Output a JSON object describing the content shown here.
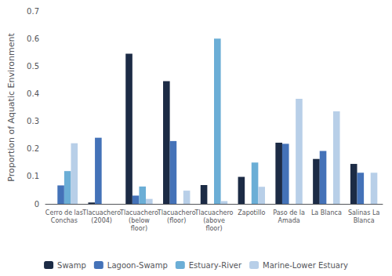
{
  "chart_data": {
    "type": "bar",
    "ylabel": "Proportion of Aquatic Environment",
    "categories": [
      "Cerro de las\nConchas",
      "Tlacuachero\n(2004)",
      "Tlacuachero\n(below\nfloor)",
      "Tlacuachero\n(floor)",
      "Tlacuachero\n(above\nfloor)",
      "Zapotillo",
      "Paso de la\nAmada",
      "La Blanca",
      "Salinas La\nBlanca"
    ],
    "series": [
      {
        "name": "Swamp",
        "color": "#1c2b45",
        "values": [
          0.0,
          0.005,
          0.545,
          0.445,
          0.068,
          0.098,
          0.222,
          0.163,
          0.145
        ]
      },
      {
        "name": "Lagoon-Swamp",
        "color": "#4472b8",
        "values": [
          0.067,
          0.24,
          0.03,
          0.228,
          0.0,
          0.0,
          0.218,
          0.192,
          0.113
        ]
      },
      {
        "name": "Estuary-River",
        "color": "#6baed6",
        "values": [
          0.119,
          0.0,
          0.063,
          0.0,
          0.6,
          0.15,
          0.0,
          0.0,
          0.0
        ]
      },
      {
        "name": "Marine-Lower Estuary",
        "color": "#b8cfe8",
        "values": [
          0.22,
          0.0,
          0.018,
          0.048,
          0.01,
          0.062,
          0.381,
          0.336,
          0.113
        ]
      }
    ],
    "ylim": [
      0,
      0.7
    ],
    "yticks": [
      0,
      0.1,
      0.2,
      0.3,
      0.4,
      0.5,
      0.6,
      0.7
    ],
    "grid": false,
    "legend": "bottom"
  }
}
